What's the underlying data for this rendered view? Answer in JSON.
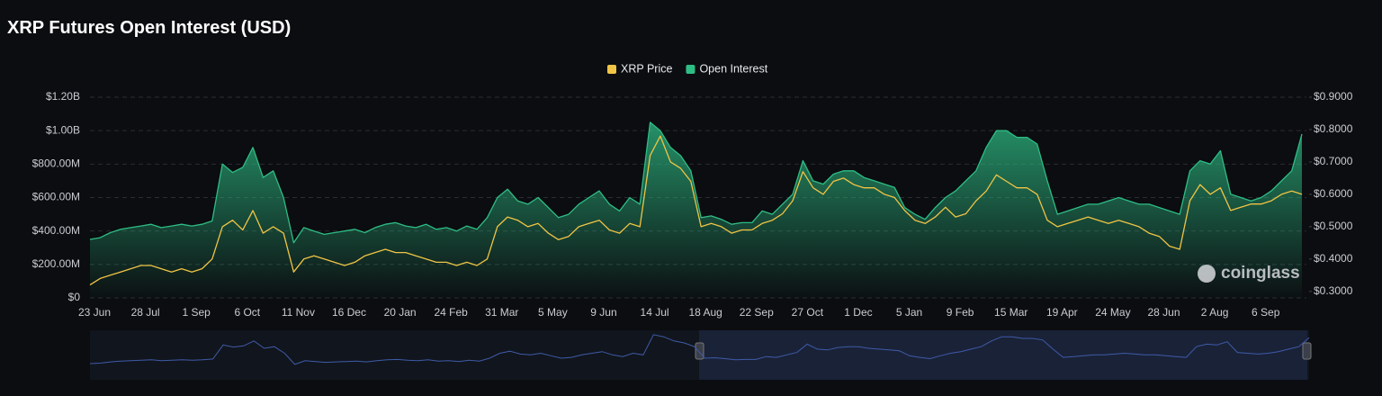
{
  "chart_data": {
    "type": "line",
    "title": "XRP Futures Open Interest (USD)",
    "watermark": "coinglass",
    "legend": "top",
    "grid": true,
    "categories": [
      "23 Jun",
      null,
      null,
      null,
      null,
      "28 Jul",
      null,
      null,
      null,
      null,
      "1 Sep",
      null,
      null,
      null,
      null,
      "6 Oct",
      null,
      null,
      null,
      null,
      "11 Nov",
      null,
      null,
      null,
      null,
      "16 Dec",
      null,
      null,
      null,
      null,
      "20 Jan",
      null,
      null,
      null,
      null,
      "24 Feb",
      null,
      null,
      null,
      null,
      "31 Mar",
      null,
      null,
      null,
      null,
      "5 May",
      null,
      null,
      null,
      null,
      "9 Jun",
      null,
      null,
      null,
      null,
      "14 Jul",
      null,
      null,
      null,
      null,
      "18 Aug",
      null,
      null,
      null,
      null,
      "22 Sep",
      null,
      null,
      null,
      null,
      "27 Oct",
      null,
      null,
      null,
      null,
      "1 Dec",
      null,
      null,
      null,
      null,
      "5 Jan",
      null,
      null,
      null,
      null,
      "9 Feb",
      null,
      null,
      null,
      null,
      "15 Mar",
      null,
      null,
      null,
      null,
      "19 Apr",
      null,
      null,
      null,
      null,
      "24 May",
      null,
      null,
      null,
      null,
      "28 Jun",
      null,
      null,
      null,
      null,
      "2 Aug",
      null,
      null,
      null,
      null,
      "6 Sep",
      null,
      null,
      null,
      null
    ],
    "series": [
      {
        "name": "XRP Price",
        "color": "#f0c445",
        "axis": "y2",
        "values": [
          0.32,
          0.34,
          0.35,
          0.36,
          0.37,
          0.38,
          0.38,
          0.37,
          0.36,
          0.37,
          0.36,
          0.37,
          0.4,
          0.5,
          0.52,
          0.49,
          0.55,
          0.48,
          0.5,
          0.48,
          0.36,
          0.4,
          0.41,
          0.4,
          0.39,
          0.38,
          0.39,
          0.41,
          0.42,
          0.43,
          0.42,
          0.42,
          0.41,
          0.4,
          0.39,
          0.39,
          0.38,
          0.39,
          0.38,
          0.4,
          0.5,
          0.53,
          0.52,
          0.5,
          0.51,
          0.48,
          0.46,
          0.47,
          0.5,
          0.51,
          0.52,
          0.49,
          0.48,
          0.51,
          0.5,
          0.72,
          0.78,
          0.7,
          0.68,
          0.64,
          0.5,
          0.51,
          0.5,
          0.48,
          0.49,
          0.49,
          0.51,
          0.52,
          0.54,
          0.58,
          0.67,
          0.62,
          0.6,
          0.64,
          0.65,
          0.63,
          0.62,
          0.62,
          0.6,
          0.59,
          0.55,
          0.52,
          0.51,
          0.53,
          0.56,
          0.53,
          0.54,
          0.58,
          0.61,
          0.66,
          0.64,
          0.62,
          0.62,
          0.6,
          0.52,
          0.5,
          0.51,
          0.52,
          0.53,
          0.52,
          0.51,
          0.52,
          0.51,
          0.5,
          0.48,
          0.47,
          0.44,
          0.43,
          0.58,
          0.63,
          0.6,
          0.62,
          0.55,
          0.56,
          0.57,
          0.57,
          0.58,
          0.6,
          0.61,
          0.6
        ]
      },
      {
        "name": "Open Interest",
        "color": "#2ebd85",
        "values": [
          350000000,
          360000000,
          390000000,
          410000000,
          420000000,
          430000000,
          440000000,
          420000000,
          430000000,
          440000000,
          430000000,
          440000000,
          460000000,
          800000000,
          750000000,
          780000000,
          900000000,
          720000000,
          760000000,
          600000000,
          330000000,
          420000000,
          400000000,
          380000000,
          390000000,
          400000000,
          410000000,
          390000000,
          420000000,
          440000000,
          450000000,
          430000000,
          420000000,
          440000000,
          410000000,
          420000000,
          400000000,
          430000000,
          410000000,
          480000000,
          600000000,
          650000000,
          580000000,
          560000000,
          600000000,
          540000000,
          480000000,
          500000000,
          560000000,
          600000000,
          640000000,
          560000000,
          520000000,
          600000000,
          560000000,
          1050000000,
          1000000000,
          900000000,
          850000000,
          760000000,
          480000000,
          490000000,
          470000000,
          440000000,
          450000000,
          450000000,
          520000000,
          500000000,
          560000000,
          620000000,
          820000000,
          700000000,
          680000000,
          740000000,
          760000000,
          760000000,
          720000000,
          700000000,
          680000000,
          660000000,
          540000000,
          500000000,
          470000000,
          540000000,
          600000000,
          640000000,
          700000000,
          760000000,
          900000000,
          1000000000,
          1000000000,
          960000000,
          960000000,
          920000000,
          700000000,
          500000000,
          520000000,
          540000000,
          560000000,
          560000000,
          580000000,
          600000000,
          580000000,
          560000000,
          560000000,
          540000000,
          520000000,
          500000000,
          760000000,
          820000000,
          800000000,
          880000000,
          620000000,
          600000000,
          580000000,
          600000000,
          640000000,
          700000000,
          760000000,
          980000000
        ]
      }
    ],
    "ylim": [
      0,
      1200000000
    ],
    "yticks": [
      {
        "value": 0,
        "label": "$0"
      },
      {
        "value": 200000000,
        "label": "$200.00M"
      },
      {
        "value": 400000000,
        "label": "$400.00M"
      },
      {
        "value": 600000000,
        "label": "$600.00M"
      },
      {
        "value": 800000000,
        "label": "$800.00M"
      },
      {
        "value": 1000000000,
        "label": "$1.00B"
      },
      {
        "value": 1200000000,
        "label": "$1.20B"
      }
    ],
    "y2lim": [
      0.28,
      0.9
    ],
    "y2ticks": [
      {
        "value": 0.3,
        "label": "$0.3000"
      },
      {
        "value": 0.4,
        "label": "$0.4000"
      },
      {
        "value": 0.5,
        "label": "$0.5000"
      },
      {
        "value": 0.6,
        "label": "$0.6000"
      },
      {
        "value": 0.7,
        "label": "$0.7000"
      },
      {
        "value": 0.8,
        "label": "$0.8000"
      },
      {
        "value": 0.9,
        "label": "$0.9000"
      }
    ]
  }
}
